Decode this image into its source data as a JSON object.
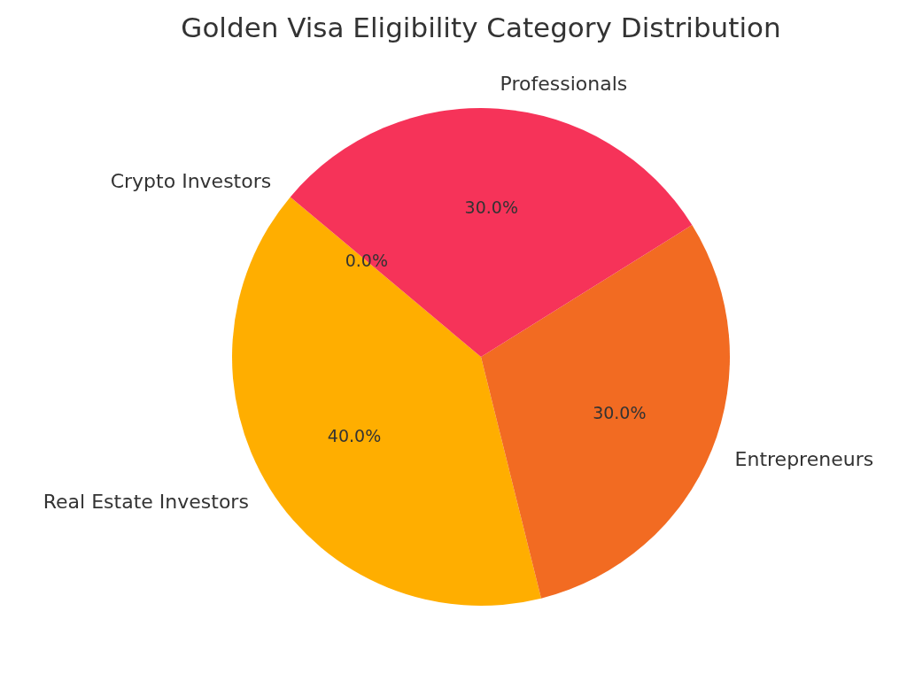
{
  "chart_data": {
    "type": "pie",
    "title": "Golden Visa Eligibility Category Distribution",
    "categories": [
      "Real Estate Investors",
      "Entrepreneurs",
      "Professionals",
      "Crypto Investors"
    ],
    "values": [
      40,
      30,
      30,
      0
    ],
    "colors": [
      "#ffae00",
      "#f26b22",
      "#f63359",
      null
    ],
    "value_labels": [
      "40.0%",
      "30.0%",
      "30.0%",
      "0.0%"
    ]
  }
}
